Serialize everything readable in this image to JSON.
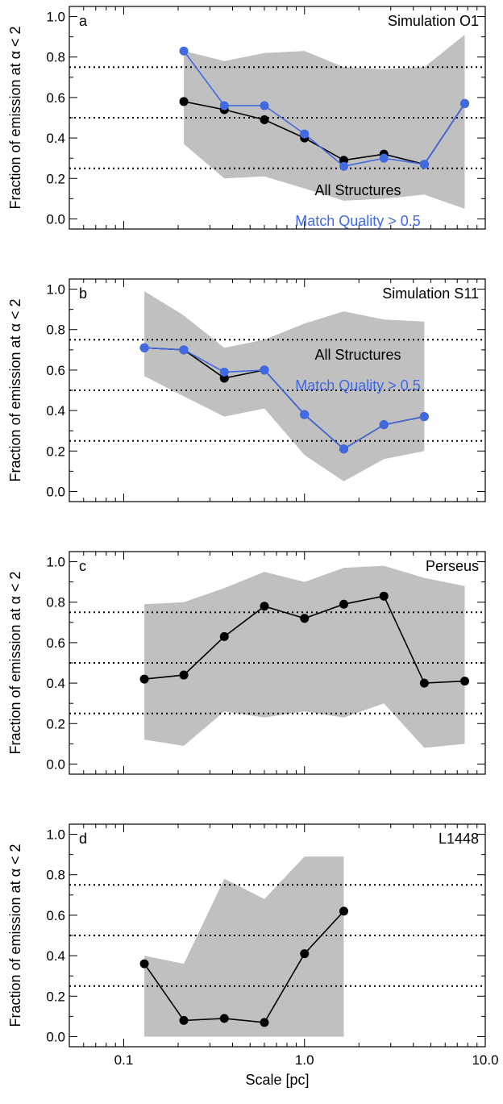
{
  "colors": {
    "band": "#c0c0c0",
    "all": "#000000",
    "match": "#4169e1",
    "axis": "#000000"
  },
  "chart_data": [
    {
      "type": "line",
      "panel": "a",
      "title": "Simulation O1",
      "ylabel": "Fraction of emission at α < 2",
      "xlabel": "",
      "xscale": "log",
      "xlim": [
        0.05,
        10.0
      ],
      "ylim": [
        -0.05,
        1.05
      ],
      "yticks": [
        "0.0",
        "0.2",
        "0.4",
        "0.6",
        "0.8",
        "1.0"
      ],
      "xticks": [],
      "reference_lines": [
        0.25,
        0.5,
        0.75
      ],
      "legend": [
        {
          "label": "All Structures",
          "series": "all"
        },
        {
          "label": "Match Quality > 0.5",
          "series": "match"
        }
      ],
      "band": {
        "x": [
          0.215,
          0.36,
          0.6,
          1.0,
          1.65,
          2.75,
          4.6,
          7.7
        ],
        "lower": [
          0.37,
          0.2,
          0.21,
          0.15,
          0.09,
          0.1,
          0.12,
          0.05
        ],
        "upper": [
          0.83,
          0.78,
          0.82,
          0.83,
          0.75,
          0.74,
          0.75,
          0.91
        ]
      },
      "series": [
        {
          "key": "all",
          "x": [
            0.215,
            0.36,
            0.6,
            1.0,
            1.65,
            2.75,
            4.6,
            7.7
          ],
          "values": [
            0.58,
            0.54,
            0.49,
            0.4,
            0.29,
            0.32,
            0.27,
            0.57
          ]
        },
        {
          "key": "match",
          "x": [
            0.215,
            0.36,
            0.6,
            1.0,
            1.65,
            2.75,
            4.6,
            7.7
          ],
          "values": [
            0.83,
            0.56,
            0.56,
            0.42,
            0.26,
            0.3,
            0.27,
            0.57
          ]
        }
      ]
    },
    {
      "type": "line",
      "panel": "b",
      "title": "Simulation S11",
      "ylabel": "Fraction of emission at α < 2",
      "xlabel": "",
      "xscale": "log",
      "xlim": [
        0.05,
        10.0
      ],
      "ylim": [
        -0.05,
        1.05
      ],
      "yticks": [
        "0.0",
        "0.2",
        "0.4",
        "0.6",
        "0.8",
        "1.0"
      ],
      "xticks": [],
      "reference_lines": [
        0.25,
        0.5,
        0.75
      ],
      "legend": [
        {
          "label": "All Structures",
          "series": "all"
        },
        {
          "label": "Match Quality > 0.5",
          "series": "match"
        }
      ],
      "band": {
        "x": [
          0.13,
          0.215,
          0.36,
          0.6,
          1.0,
          1.65,
          2.75,
          4.6
        ],
        "lower": [
          0.57,
          0.47,
          0.37,
          0.41,
          0.18,
          0.05,
          0.16,
          0.2
        ],
        "upper": [
          0.99,
          0.87,
          0.71,
          0.75,
          0.83,
          0.89,
          0.85,
          0.84
        ]
      },
      "series": [
        {
          "key": "all",
          "x": [
            0.13,
            0.215,
            0.36,
            0.6,
            1.0,
            1.65,
            2.75,
            4.6
          ],
          "values": [
            0.71,
            0.7,
            0.56,
            0.6,
            0.38,
            0.21,
            0.33,
            0.37
          ]
        },
        {
          "key": "match",
          "x": [
            0.13,
            0.215,
            0.36,
            0.6,
            1.0,
            1.65,
            2.75,
            4.6
          ],
          "values": [
            0.71,
            0.7,
            0.59,
            0.6,
            0.38,
            0.21,
            0.33,
            0.37
          ]
        }
      ]
    },
    {
      "type": "line",
      "panel": "c",
      "title": "Perseus",
      "ylabel": "Fraction of emission at α < 2",
      "xlabel": "",
      "xscale": "log",
      "xlim": [
        0.05,
        10.0
      ],
      "ylim": [
        -0.05,
        1.05
      ],
      "yticks": [
        "0.0",
        "0.2",
        "0.4",
        "0.6",
        "0.8",
        "1.0"
      ],
      "xticks": [],
      "reference_lines": [
        0.25,
        0.5,
        0.75
      ],
      "legend": [],
      "band": {
        "x": [
          0.13,
          0.215,
          0.36,
          0.6,
          1.0,
          1.65,
          2.75,
          4.6,
          7.7
        ],
        "lower": [
          0.12,
          0.09,
          0.26,
          0.23,
          0.26,
          0.23,
          0.3,
          0.08,
          0.1
        ],
        "upper": [
          0.79,
          0.8,
          0.87,
          0.95,
          0.9,
          0.97,
          0.98,
          0.92,
          0.88
        ]
      },
      "series": [
        {
          "key": "all",
          "x": [
            0.13,
            0.215,
            0.36,
            0.6,
            1.0,
            1.65,
            2.75,
            4.6,
            7.7
          ],
          "values": [
            0.42,
            0.44,
            0.63,
            0.78,
            0.72,
            0.79,
            0.83,
            0.4,
            0.41
          ]
        }
      ]
    },
    {
      "type": "line",
      "panel": "d",
      "title": "L1448",
      "ylabel": "Fraction of emission at α < 2",
      "xlabel": "Scale [pc]",
      "xscale": "log",
      "xlim": [
        0.05,
        10.0
      ],
      "ylim": [
        -0.05,
        1.05
      ],
      "yticks": [
        "0.0",
        "0.2",
        "0.4",
        "0.6",
        "0.8",
        "1.0"
      ],
      "xticks": [
        {
          "value": 0.1,
          "label": "0.1"
        },
        {
          "value": 1.0,
          "label": "1.0"
        },
        {
          "value": 10.0,
          "label": "10.0"
        }
      ],
      "reference_lines": [
        0.25,
        0.5,
        0.75
      ],
      "legend": [],
      "band": {
        "x": [
          0.13,
          0.215,
          0.36,
          0.6,
          1.0,
          1.65
        ],
        "lower": [
          0.0,
          0.0,
          0.0,
          0.0,
          0.0,
          0.0
        ],
        "upper": [
          0.4,
          0.36,
          0.78,
          0.68,
          0.89,
          0.89
        ]
      },
      "series": [
        {
          "key": "all",
          "x": [
            0.13,
            0.215,
            0.36,
            0.6,
            1.0,
            1.65
          ],
          "values": [
            0.36,
            0.08,
            0.09,
            0.07,
            0.41,
            0.62
          ]
        }
      ]
    }
  ]
}
